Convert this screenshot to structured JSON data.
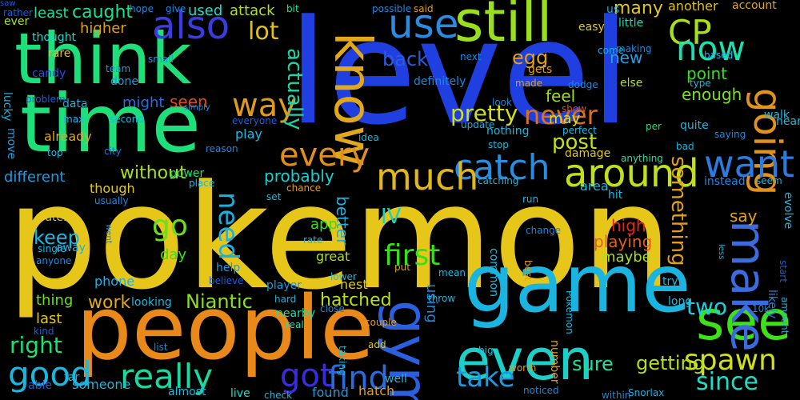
{
  "words": [
    {
      "text": "pokemon",
      "color": "#e6c619"
    },
    {
      "text": "level",
      "color": "#1f3fe0"
    },
    {
      "text": "game",
      "color": "#1ab4e0"
    },
    {
      "text": "people",
      "color": "#e8891a"
    },
    {
      "text": "time",
      "color": "#1ee07a"
    },
    {
      "text": "think",
      "color": "#1ee07a"
    },
    {
      "text": "still",
      "color": "#9adf1e"
    },
    {
      "text": "know",
      "color": "#e0a81a"
    },
    {
      "text": "even",
      "color": "#1ad0c8"
    },
    {
      "text": "see",
      "color": "#3ee01a"
    },
    {
      "text": "gym",
      "color": "#2a5fe0"
    },
    {
      "text": "make",
      "color": "#3a6ce0"
    },
    {
      "text": "also",
      "color": "#3a3ce0"
    },
    {
      "text": "use",
      "color": "#2a8ce0"
    },
    {
      "text": "going",
      "color": "#e0921a"
    },
    {
      "text": "want",
      "color": "#2a7ce0"
    },
    {
      "text": "around",
      "color": "#c0e01a"
    },
    {
      "text": "catch",
      "color": "#2a8ce0"
    },
    {
      "text": "much",
      "color": "#e0b81a"
    },
    {
      "text": "really",
      "color": "#1ad8a0"
    },
    {
      "text": "good",
      "color": "#1ab8e0"
    },
    {
      "text": "every",
      "color": "#e0901a"
    },
    {
      "text": "CP",
      "color": "#a8e01a"
    },
    {
      "text": "now",
      "color": "#1ae0b0"
    },
    {
      "text": "way",
      "color": "#e09a1a"
    },
    {
      "text": "got",
      "color": "#3a2ce0"
    },
    {
      "text": "find",
      "color": "#2a6ce0"
    },
    {
      "text": "spawn",
      "color": "#d0e01a"
    },
    {
      "text": "take",
      "color": "#1a9ce0"
    },
    {
      "text": "since",
      "color": "#1ae0c8"
    },
    {
      "text": "first",
      "color": "#38e01a"
    },
    {
      "text": "go",
      "color": "#68e01a"
    },
    {
      "text": "need",
      "color": "#1ab0e0"
    },
    {
      "text": "never",
      "color": "#e0701a"
    },
    {
      "text": "two",
      "color": "#1ad0e0"
    },
    {
      "text": "lot",
      "color": "#e0c01a"
    },
    {
      "text": "pretty",
      "color": "#d0e01a"
    },
    {
      "text": "post",
      "color": "#c0e01a"
    },
    {
      "text": "something",
      "color": "#e0a01a"
    },
    {
      "text": "actually",
      "color": "#1ad8a8"
    },
    {
      "text": "right",
      "color": "#1ae070"
    },
    {
      "text": "keep",
      "color": "#1ab8e0"
    },
    {
      "text": "Niantic",
      "color": "#8ce01a"
    },
    {
      "text": "IV",
      "color": "#1ad0c0"
    },
    {
      "text": "sure",
      "color": "#1ae0a0"
    },
    {
      "text": "getting",
      "color": "#b0e01a"
    },
    {
      "text": "work",
      "color": "#e0a81a"
    },
    {
      "text": "without",
      "color": "#a8e01a"
    },
    {
      "text": "probably",
      "color": "#1ad0d0"
    },
    {
      "text": "better",
      "color": "#1ab0e0"
    },
    {
      "text": "using",
      "color": "#1a88e0"
    },
    {
      "text": "hatched",
      "color": "#b8e01a"
    },
    {
      "text": "egg",
      "color": "#e0a01a"
    },
    {
      "text": "back",
      "color": "#2a5ce0"
    },
    {
      "text": "caught",
      "color": "#1ae08a"
    },
    {
      "text": "many",
      "color": "#e0c81a"
    },
    {
      "text": "point",
      "color": "#38e01a"
    },
    {
      "text": "enough",
      "color": "#7ce01a"
    },
    {
      "text": "feel",
      "color": "#a0e01a"
    },
    {
      "text": "high",
      "color": "#e02a1a"
    },
    {
      "text": "say",
      "color": "#e0a01a"
    },
    {
      "text": "playing",
      "color": "#e0601a"
    },
    {
      "text": "maybe",
      "color": "#a8e01a"
    },
    {
      "text": "last",
      "color": "#e0c81a"
    },
    {
      "text": "thing",
      "color": "#68e01a"
    },
    {
      "text": "app",
      "color": "#38e01a"
    },
    {
      "text": "day",
      "color": "#38e01a"
    },
    {
      "text": "may",
      "color": "#d0e01a"
    },
    {
      "text": "new",
      "color": "#2a9ce0"
    },
    {
      "text": "seen",
      "color": "#e04a1a"
    },
    {
      "text": "might",
      "color": "#2a6ce0"
    },
    {
      "text": "higher",
      "color": "#e0a01a"
    },
    {
      "text": "least",
      "color": "#1ae0a0"
    },
    {
      "text": "attack",
      "color": "#b0e01a"
    },
    {
      "text": "used",
      "color": "#1ae0c8"
    },
    {
      "text": "another",
      "color": "#e0c01a"
    },
    {
      "text": "little",
      "color": "#1ad8b0"
    },
    {
      "text": "us",
      "color": "#1ab0e0"
    },
    {
      "text": "easy",
      "color": "#e0c81a"
    },
    {
      "text": "account",
      "color": "#e0a81a"
    },
    {
      "text": "city",
      "color": "#1a7ce0"
    },
    {
      "text": "power",
      "color": "#1ae070"
    },
    {
      "text": "play",
      "color": "#1ab8e0"
    },
    {
      "text": "different",
      "color": "#1a9ce0"
    },
    {
      "text": "already",
      "color": "#e0a81a"
    },
    {
      "text": "though",
      "color": "#e0c81a"
    },
    {
      "text": "area",
      "color": "#1ab8e0"
    },
    {
      "text": "phone",
      "color": "#1ab0e0"
    },
    {
      "text": "looking",
      "color": "#1ab8e0"
    },
    {
      "text": "help",
      "color": "#1a9ce0"
    },
    {
      "text": "great",
      "color": "#b0e01a"
    },
    {
      "text": "nest",
      "color": "#e0c81a"
    },
    {
      "text": "player",
      "color": "#1a9ce0"
    },
    {
      "text": "hard",
      "color": "#1ab0e0"
    },
    {
      "text": "nearby",
      "color": "#1ae0a0"
    },
    {
      "text": "real",
      "color": "#1ae0c0"
    },
    {
      "text": "close",
      "color": "#1a88e0"
    },
    {
      "text": "hatch",
      "color": "#e0a01a"
    },
    {
      "text": "found",
      "color": "#1a9ce0"
    },
    {
      "text": "live",
      "color": "#1ae0c8"
    },
    {
      "text": "check",
      "color": "#1ab8e0"
    },
    {
      "text": "almost",
      "color": "#1ab8e0"
    },
    {
      "text": "someone",
      "color": "#1ab8e0"
    },
    {
      "text": "able",
      "color": "#1a5ce0"
    },
    {
      "text": "far",
      "color": "#1ab8e0"
    },
    {
      "text": "water",
      "color": "#e0c81a"
    },
    {
      "text": "away",
      "color": "#1ab0e0"
    },
    {
      "text": "rare",
      "color": "#e0c01a"
    },
    {
      "text": "candy",
      "color": "#2a4ce0"
    },
    {
      "text": "data",
      "color": "#1ab0e0"
    },
    {
      "text": "move",
      "color": "#1a9ce0"
    },
    {
      "text": "lucky",
      "color": "#1ab0e0"
    },
    {
      "text": "ever",
      "color": "#b0e01a"
    },
    {
      "text": "thought",
      "color": "#1ad8c8"
    },
    {
      "text": "done",
      "color": "#1a9ce0"
    },
    {
      "text": "team",
      "color": "#1a9ce0"
    },
    {
      "text": "small",
      "color": "#1a9ce0"
    },
    {
      "text": "hope",
      "color": "#1a88e0"
    },
    {
      "text": "give",
      "color": "#1a88e0"
    },
    {
      "text": "bit",
      "color": "#1ae0a0"
    },
    {
      "text": "possible",
      "color": "#1a88e0"
    },
    {
      "text": "said",
      "color": "#e0a01a"
    },
    {
      "text": "definitely",
      "color": "#1a88e0"
    },
    {
      "text": "next",
      "color": "#1a88e0"
    },
    {
      "text": "gets",
      "color": "#e0a01a"
    },
    {
      "text": "made",
      "color": "#e0a01a"
    },
    {
      "text": "dodge",
      "color": "#1a88e0"
    },
    {
      "text": "else",
      "color": "#b0e01a"
    },
    {
      "text": "type",
      "color": "#1ab8e0"
    },
    {
      "text": "making",
      "color": "#1a88e0"
    },
    {
      "text": "based",
      "color": "#1ab0e0"
    },
    {
      "text": "come",
      "color": "#1ab0e0"
    },
    {
      "text": "look",
      "color": "#1a88e0"
    },
    {
      "text": "show",
      "color": "#e04a1a"
    },
    {
      "text": "saying",
      "color": "#1a88e0"
    },
    {
      "text": "walk",
      "color": "#1ab8e0"
    },
    {
      "text": "near",
      "color": "#1ab8e0"
    },
    {
      "text": "per",
      "color": "#1ae070"
    },
    {
      "text": "perfect",
      "color": "#1ab8e0"
    },
    {
      "text": "bad",
      "color": "#1ab8e0"
    },
    {
      "text": "quite",
      "color": "#1ab8e0"
    },
    {
      "text": "anything",
      "color": "#1ae0a0"
    },
    {
      "text": "instead",
      "color": "#1a88e0"
    },
    {
      "text": "seem",
      "color": "#1ab8e0"
    },
    {
      "text": "evolve",
      "color": "#1ab8e0"
    },
    {
      "text": "less",
      "color": "#1ab8e0"
    },
    {
      "text": "start",
      "color": "#1a5ce0"
    },
    {
      "text": "amount",
      "color": "#1ab0e0"
    },
    {
      "text": "10k",
      "color": "#1a88e0"
    },
    {
      "text": "likely",
      "color": "#1a88e0"
    },
    {
      "text": "try",
      "color": "#1ab8e0"
    },
    {
      "text": "long",
      "color": "#1ab8e0"
    },
    {
      "text": "Pokémon",
      "color": "#1ab8e0"
    },
    {
      "text": "Snorlax",
      "color": "#1ab0e0"
    },
    {
      "text": "within",
      "color": "#1a88e0"
    },
    {
      "text": "noticed",
      "color": "#1a88e0"
    },
    {
      "text": "worth",
      "color": "#e0a01a"
    },
    {
      "text": "number",
      "color": "#e0a01a"
    },
    {
      "text": "best",
      "color": "#e0a01a"
    },
    {
      "text": "common",
      "color": "#1ab8e0"
    },
    {
      "text": "change",
      "color": "#1a88e0"
    },
    {
      "text": "run",
      "color": "#1ab8e0"
    },
    {
      "text": "catching",
      "color": "#1ab8e0"
    },
    {
      "text": "update",
      "color": "#1ab0e0"
    },
    {
      "text": "idea",
      "color": "#1ab8e0"
    },
    {
      "text": "stop",
      "color": "#1ab8e0"
    },
    {
      "text": "nothing",
      "color": "#1ab8e0"
    },
    {
      "text": "damage",
      "color": "#e0c81a"
    },
    {
      "text": "well",
      "color": "#1ab8e0"
    },
    {
      "text": "hit",
      "color": "#1ab8e0"
    },
    {
      "text": "big",
      "color": "#1ab8e0"
    },
    {
      "text": "add",
      "color": "#e0c81a"
    },
    {
      "text": "taking",
      "color": "#1ab8e0"
    },
    {
      "text": "throw",
      "color": "#1ab8e0"
    },
    {
      "text": "couple",
      "color": "#e0a01a"
    },
    {
      "text": "mean",
      "color": "#1ab8e0"
    },
    {
      "text": "put",
      "color": "#e0a01a"
    },
    {
      "text": "lower",
      "color": "#1ab8e0"
    },
    {
      "text": "rate",
      "color": "#1ab8e0"
    },
    {
      "text": "chance",
      "color": "#e0a01a"
    },
    {
      "text": "set",
      "color": "#1ab8e0"
    },
    {
      "text": "place",
      "color": "#1ab8e0"
    },
    {
      "text": "reason",
      "color": "#1a88e0"
    },
    {
      "text": "simply",
      "color": "#1a88e0"
    },
    {
      "text": "everyone",
      "color": "#1a5ce0"
    },
    {
      "text": "second",
      "color": "#1ab8e0"
    },
    {
      "text": "max",
      "color": "#1ab8e0"
    },
    {
      "text": "top",
      "color": "#1ab8e0"
    },
    {
      "text": "usually",
      "color": "#1a88e0"
    },
    {
      "text": "single",
      "color": "#1ab8e0"
    },
    {
      "text": "anyone",
      "color": "#1a88e0"
    },
    {
      "text": "went",
      "color": "#1a88e0"
    },
    {
      "text": "believe",
      "color": "#1a5ce0"
    },
    {
      "text": "list",
      "color": "#1a88e0"
    },
    {
      "text": "kind",
      "color": "#1a5ce0"
    },
    {
      "text": "problem",
      "color": "#1a5ce0"
    },
    {
      "text": "rather",
      "color": "#1a5ce0"
    },
    {
      "text": "saw",
      "color": "#1a5ce0"
    }
  ]
}
